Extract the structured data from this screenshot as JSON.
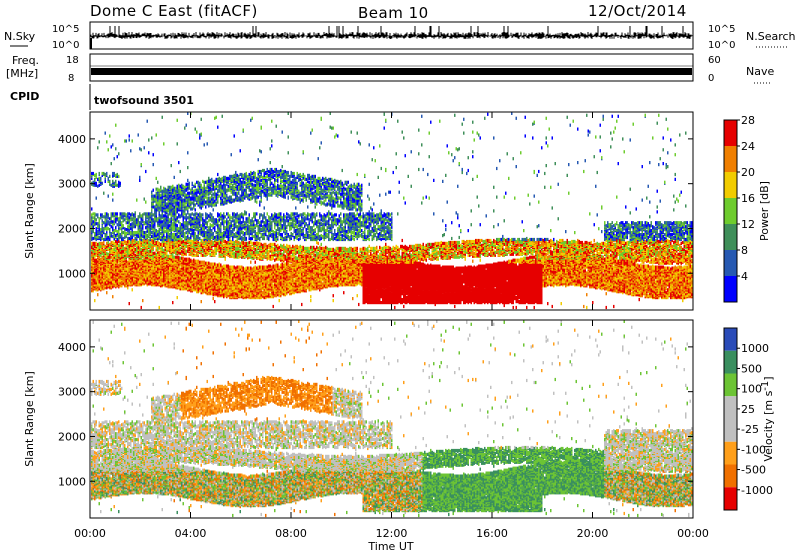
{
  "header": {
    "title": "Dome C East (fitACF)",
    "beam": "Beam 10",
    "date": "12/Oct/2014"
  },
  "noise_panel": {
    "left_label": "N.Sky",
    "right_label": "N.Search",
    "left_ticks": [
      "10^5",
      "10^0"
    ],
    "right_ticks": [
      "10^5",
      "10^0"
    ]
  },
  "freq_panel": {
    "left_label_line1": "Freq.",
    "left_label_line2": "[MHz]",
    "right_label": "Nave",
    "left_ticks": [
      "18",
      "8"
    ],
    "right_ticks": [
      "60",
      "0"
    ]
  },
  "cpid_panel": {
    "label": "CPID",
    "value": "twofsound 3501"
  },
  "chart_data": [
    {
      "type": "heatmap",
      "name": "power",
      "ylabel": "Slant Range [km]",
      "ylim": [
        180,
        4600
      ],
      "yticks": [
        "1000",
        "2000",
        "3000",
        "4000"
      ],
      "colorbar_label": "Power [dB]",
      "colorbar_ticks": [
        "4",
        "8",
        "12",
        "16",
        "20",
        "24",
        "28"
      ],
      "colors": [
        "#0000ff",
        "#2659b2",
        "#3f8f5a",
        "#6ecc2e",
        "#f2cc00",
        "#f07f00",
        "#e60000"
      ]
    },
    {
      "type": "heatmap",
      "name": "velocity",
      "ylabel": "Slant Range [km]",
      "ylim": [
        180,
        4600
      ],
      "yticks": [
        "1000",
        "2000",
        "3000",
        "4000"
      ],
      "colorbar_label": "Velocity [m s",
      "colorbar_label_sup": "-1",
      "colorbar_label_end": "]",
      "colorbar_ticks": [
        "1000",
        "500",
        "100",
        "25",
        "-25",
        "-100",
        "-500",
        "-1000"
      ],
      "colors": [
        "#2a4bb8",
        "#3a8f5f",
        "#6cc434",
        "#c0c0c0",
        "#c0c0c0",
        "#ff9f1a",
        "#f07000",
        "#e60000"
      ]
    }
  ],
  "xaxis": {
    "ticks": [
      "00:00",
      "04:00",
      "08:00",
      "12:00",
      "16:00",
      "20:00",
      "00:00"
    ],
    "label": "Time UT"
  }
}
